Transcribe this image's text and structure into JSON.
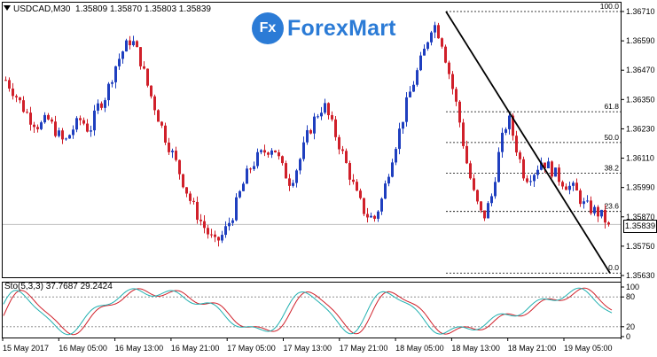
{
  "header": {
    "symbol": "USDCAD,M30",
    "ohlc": "1.35809 1.35870 1.35803 1.35839"
  },
  "logo": {
    "badge": "Fx",
    "text": "ForexMart"
  },
  "current_price": "1.35839",
  "price_axis": {
    "ticks": [
      "1.36710",
      "1.36590",
      "1.36470",
      "1.36350",
      "1.36230",
      "1.36110",
      "1.35990",
      "1.35870",
      "1.35750",
      "1.35630"
    ]
  },
  "fibonacci": {
    "levels": [
      {
        "label": "100.0",
        "price": 1.3671
      },
      {
        "label": "61.8",
        "price": 1.363
      },
      {
        "label": "50.0",
        "price": 1.36174
      },
      {
        "label": "38.2",
        "price": 1.36049
      },
      {
        "label": "23.6",
        "price": 1.35892
      },
      {
        "label": "0.0",
        "price": 1.3564
      }
    ]
  },
  "oscillator": {
    "label": "Sto(5,3,3) 37.7687 29.2424",
    "ticks": [
      "100",
      "80",
      "20",
      "0"
    ]
  },
  "time_axis": {
    "ticks": [
      "15 May 2017",
      "16 May 05:00",
      "16 May 13:00",
      "16 May 21:00",
      "17 May 05:00",
      "17 May 13:00",
      "17 May 21:00",
      "18 May 05:00",
      "18 May 13:00",
      "18 May 21:00",
      "19 May 05:00"
    ]
  },
  "colors": {
    "bull": "#1f3fbf",
    "bear": "#d0202a",
    "stoch_main": "#20b0b0",
    "stoch_signal": "#d0202a",
    "logo": "#2b7bd6"
  },
  "chart_data": {
    "type": "candlestick",
    "symbol": "USDCAD",
    "timeframe": "M30",
    "ylim": [
      1.3563,
      1.3671
    ],
    "trendline": {
      "from_price": 1.3671,
      "to_price": 1.3564
    },
    "close_path": [
      1.3643,
      1.3638,
      1.3632,
      1.3627,
      1.3624,
      1.3627,
      1.3622,
      1.3617,
      1.3623,
      1.3627,
      1.3622,
      1.3632,
      1.3637,
      1.3648,
      1.3655,
      1.366,
      1.3652,
      1.364,
      1.363,
      1.362,
      1.3612,
      1.3603,
      1.3594,
      1.3587,
      1.3581,
      1.3576,
      1.358,
      1.3587,
      1.3597,
      1.3606,
      1.3611,
      1.3614,
      1.3616,
      1.3607,
      1.3601,
      1.3609,
      1.362,
      1.3628,
      1.3633,
      1.3624,
      1.3615,
      1.3605,
      1.3595,
      1.3588,
      1.3586,
      1.3595,
      1.361,
      1.3622,
      1.3635,
      1.3645,
      1.3655,
      1.3667,
      1.366,
      1.3645,
      1.363,
      1.361,
      1.3595,
      1.3586,
      1.3595,
      1.3615,
      1.3628,
      1.3615,
      1.3603,
      1.3605,
      1.361,
      1.3607,
      1.3603,
      1.36,
      1.3598,
      1.3592,
      1.359,
      1.3588,
      1.3584
    ]
  }
}
